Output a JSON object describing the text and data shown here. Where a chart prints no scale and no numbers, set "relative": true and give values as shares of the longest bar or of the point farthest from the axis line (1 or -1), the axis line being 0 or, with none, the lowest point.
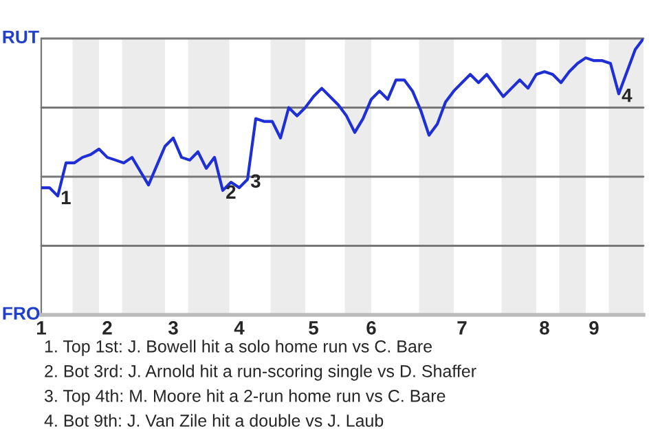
{
  "chart_data": {
    "type": "line",
    "relative": true,
    "categories": [
      "1",
      null,
      null,
      null,
      null,
      null,
      null,
      null,
      "2",
      null,
      null,
      null,
      null,
      null,
      null,
      null,
      "3",
      null,
      null,
      null,
      null,
      null,
      null,
      null,
      "4",
      null,
      null,
      null,
      null,
      null,
      null,
      null,
      null,
      "5",
      null,
      null,
      null,
      null,
      null,
      null,
      "6",
      null,
      null,
      null,
      null,
      null,
      null,
      null,
      null,
      null,
      null,
      "7",
      null,
      null,
      null,
      null,
      null,
      null,
      null,
      null,
      null,
      "8",
      null,
      null,
      null,
      null,
      null,
      "9",
      null,
      null,
      null,
      null,
      null,
      null
    ],
    "series": [
      {
        "color": "#1f2fd6",
        "values": [
          0.46,
          0.46,
          0.43,
          0.55,
          0.55,
          0.57,
          0.58,
          0.6,
          0.57,
          0.56,
          0.55,
          0.57,
          0.52,
          0.47,
          0.54,
          0.61,
          0.64,
          0.57,
          0.56,
          0.59,
          0.53,
          0.57,
          0.45,
          0.48,
          0.46,
          0.49,
          0.71,
          0.7,
          0.7,
          0.64,
          0.75,
          0.72,
          0.75,
          0.79,
          0.82,
          0.79,
          0.76,
          0.72,
          0.66,
          0.71,
          0.78,
          0.81,
          0.78,
          0.85,
          0.85,
          0.81,
          0.74,
          0.65,
          0.69,
          0.77,
          0.81,
          0.84,
          0.87,
          0.84,
          0.87,
          0.83,
          0.79,
          0.82,
          0.85,
          0.82,
          0.87,
          0.88,
          0.87,
          0.84,
          0.88,
          0.91,
          0.93,
          0.92,
          0.92,
          0.91,
          0.8,
          0.88,
          0.96,
          1.0
        ]
      }
    ],
    "marker": "none",
    "line_style": "solid",
    "ref_lines": [
      {
        "axis": "y",
        "value": 0.25,
        "color": "#777777"
      },
      {
        "axis": "y",
        "value": 0.5,
        "color": "#777777"
      },
      {
        "axis": "y",
        "value": 0.75,
        "color": "#777777"
      },
      {
        "axis": "y",
        "value": 1,
        "color": "#777777"
      }
    ],
    "annotations": [
      "RUT",
      "FRO",
      {
        "text": "1",
        "y": 0.43
      },
      {
        "text": "2",
        "y": 0.45
      },
      {
        "text": "3",
        "y": 0.49
      },
      {
        "text": "4",
        "y": 0.8
      },
      "1. Top 1st: J. Bowell hit a solo home run vs C. Bare",
      "2. Bot 3rd: J. Arnold hit a run-scoring single vs D. Shaffer",
      "3. Top 4th: M. Moore hit a 2-run home run vs C. Bare",
      "4. Bot 9th: J. Van Zile hit a double vs J. Laub"
    ]
  }
}
